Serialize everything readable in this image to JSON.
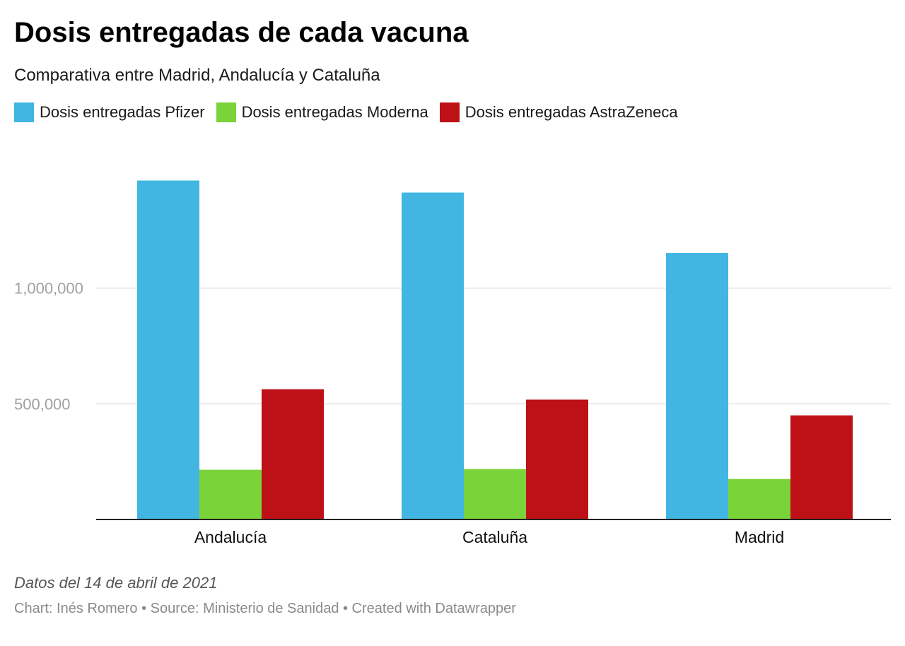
{
  "header": {
    "title": "Dosis entregadas de cada vacuna",
    "subtitle": "Comparativa entre Madrid, Andalucía y Cataluña"
  },
  "legend": [
    {
      "label": "Dosis entregadas Pfizer",
      "color": "#41b6e2"
    },
    {
      "label": "Dosis entregadas Moderna",
      "color": "#7bd33a"
    },
    {
      "label": "Dosis entregadas AstraZeneca",
      "color": "#bd1117"
    }
  ],
  "chart_data": {
    "type": "bar",
    "categories": [
      "Andalucía",
      "Cataluña",
      "Madrid"
    ],
    "series": [
      {
        "name": "Dosis entregadas Pfizer",
        "color": "#41b6e2",
        "values": [
          1465000,
          1413000,
          1152000
        ]
      },
      {
        "name": "Dosis entregadas Moderna",
        "color": "#7bd33a",
        "values": [
          215000,
          218000,
          175000
        ]
      },
      {
        "name": "Dosis entregadas AstraZeneca",
        "color": "#bd1117",
        "values": [
          563000,
          518000,
          450000
        ]
      }
    ],
    "yticks": [
      500000,
      1000000
    ],
    "ytick_labels": [
      "500,000",
      "1,000,000"
    ],
    "ylim": [
      0,
      1500000
    ],
    "grid": true,
    "legend_position": "top-left"
  },
  "notes": {
    "date_note": "Datos del 14 de abril de 2021",
    "credit": "Chart: Inés Romero • Source: Ministerio de Sanidad • Created with Datawrapper"
  }
}
